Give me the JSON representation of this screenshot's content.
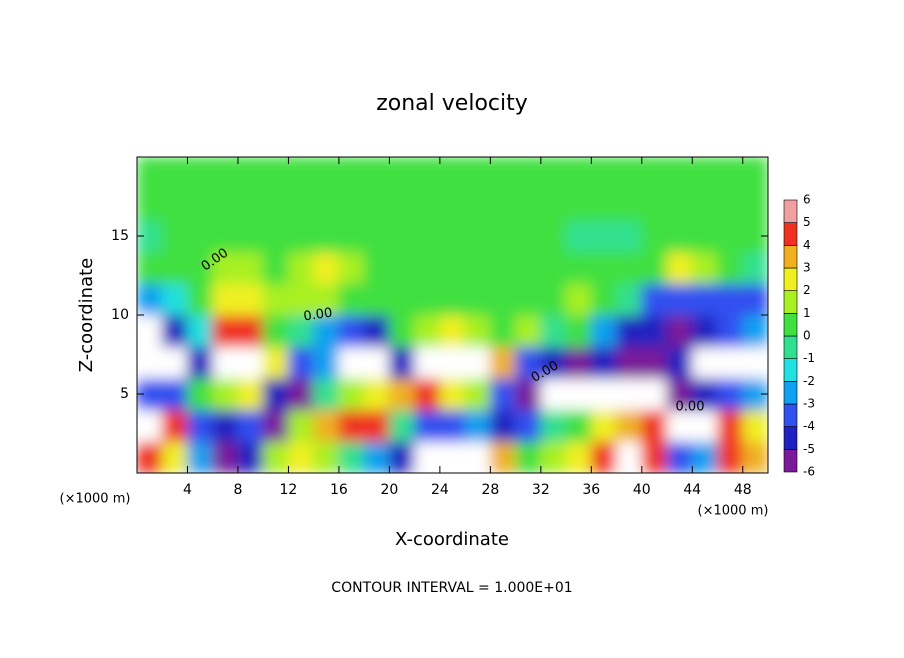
{
  "chart_data": {
    "type": "contour",
    "title": "zonal velocity",
    "xlabel": "X-coordinate",
    "ylabel": "Z-coordinate",
    "xunit": "(×1000 m)",
    "yunit": "(×1000 m)",
    "footnote": "CONTOUR INTERVAL = 1.000E+01",
    "contour_labels": [
      "0.00",
      "0.00",
      "0.00",
      "0.00"
    ],
    "xlim": [
      0,
      50
    ],
    "ylim": [
      0,
      20
    ],
    "xticks": [
      4,
      8,
      12,
      16,
      20,
      24,
      28,
      32,
      36,
      40,
      44,
      48
    ],
    "yticks": [
      5,
      10,
      15
    ],
    "x": [
      1,
      3,
      5,
      7,
      9,
      11,
      13,
      15,
      17,
      19,
      21,
      23,
      25,
      27,
      29,
      31,
      33,
      35,
      37,
      39,
      41,
      43,
      45,
      47,
      49
    ],
    "y": [
      1,
      3,
      5,
      7,
      9,
      11,
      13,
      15,
      17,
      19
    ],
    "z": [
      [
        5,
        3,
        -2,
        -5,
        -4,
        2,
        3,
        2,
        0,
        -2,
        -4,
        7,
        7,
        7,
        4,
        1,
        2,
        3,
        5,
        7,
        5,
        -3,
        -2,
        5,
        4
      ],
      [
        7,
        5,
        -3,
        -4,
        -3,
        -5,
        2,
        4,
        5,
        5,
        0,
        -3,
        -3,
        -2,
        -4,
        -3,
        0,
        1,
        3,
        4,
        5,
        7,
        7,
        5,
        3
      ],
      [
        -3,
        -3,
        0.5,
        2,
        3,
        -4,
        -5,
        0,
        2,
        3,
        4,
        5,
        3,
        2,
        -3,
        -5,
        -7,
        -7,
        -7,
        -7,
        -7,
        -5,
        -4,
        -3,
        -2
      ],
      [
        -7,
        -7,
        -4,
        7,
        7,
        3,
        -3,
        -2,
        7,
        7,
        -4,
        7,
        7,
        7,
        4,
        -3,
        -4,
        -5,
        -4,
        -5,
        -6,
        -4,
        -7,
        -7,
        -7
      ],
      [
        -7,
        -4,
        -1,
        5,
        4.5,
        1,
        0,
        -2,
        -3,
        -4,
        0.5,
        2,
        3,
        2,
        0.5,
        2,
        0,
        0.5,
        -2,
        -4,
        -4,
        -5,
        -4,
        -3,
        -2
      ],
      [
        -2,
        -1,
        0.5,
        2.5,
        2.5,
        1.5,
        1.5,
        1.5,
        0.8,
        0.8,
        0.8,
        0.8,
        0.8,
        0.8,
        0.8,
        1,
        1,
        2,
        0.5,
        -0.5,
        -3,
        -3,
        -3,
        -3,
        -3
      ],
      [
        0.5,
        0.8,
        1,
        1.5,
        1.5,
        1,
        2,
        2.5,
        1.5,
        1,
        1,
        1,
        1,
        1,
        1,
        1,
        1,
        1,
        0.8,
        0.5,
        0.8,
        2.5,
        1.5,
        0.5,
        -0.5
      ],
      [
        -0.5,
        0.5,
        0.5,
        0.8,
        0.8,
        0.8,
        1,
        1,
        0.8,
        0.8,
        0.8,
        0.8,
        0.8,
        0.5,
        0.5,
        0.5,
        0.5,
        -0.5,
        -0.5,
        -0.5,
        0.3,
        0.5,
        0.5,
        0.3,
        0.3
      ],
      [
        0.8,
        0.8,
        0.8,
        0.5,
        0.5,
        0.5,
        0.5,
        0.5,
        0.5,
        0.5,
        0.5,
        0.5,
        0.5,
        0.5,
        0.5,
        0.5,
        0.5,
        0.5,
        0.5,
        0.5,
        0.5,
        0.5,
        0.5,
        0.3,
        0.3
      ],
      [
        0.5,
        0.5,
        0.5,
        0.5,
        0.5,
        0.5,
        0.5,
        0.5,
        0.5,
        0.5,
        0.5,
        0.5,
        0.5,
        0.5,
        0.5,
        0.5,
        0.5,
        0.5,
        0.5,
        0.5,
        0.3,
        0.3,
        0.3,
        0.3,
        0.3
      ]
    ],
    "colorbar": {
      "levels": [
        -6,
        -5,
        -4,
        -3,
        -2,
        -1,
        0,
        1,
        2,
        3,
        4,
        5,
        6
      ],
      "colors": [
        "#7a1a9a",
        "#2020c0",
        "#3050f0",
        "#10a0f0",
        "#20e0e0",
        "#30e090",
        "#40e040",
        "#a8f020",
        "#f0f020",
        "#f0b020",
        "#f03020",
        "#f0a0a0"
      ]
    }
  }
}
